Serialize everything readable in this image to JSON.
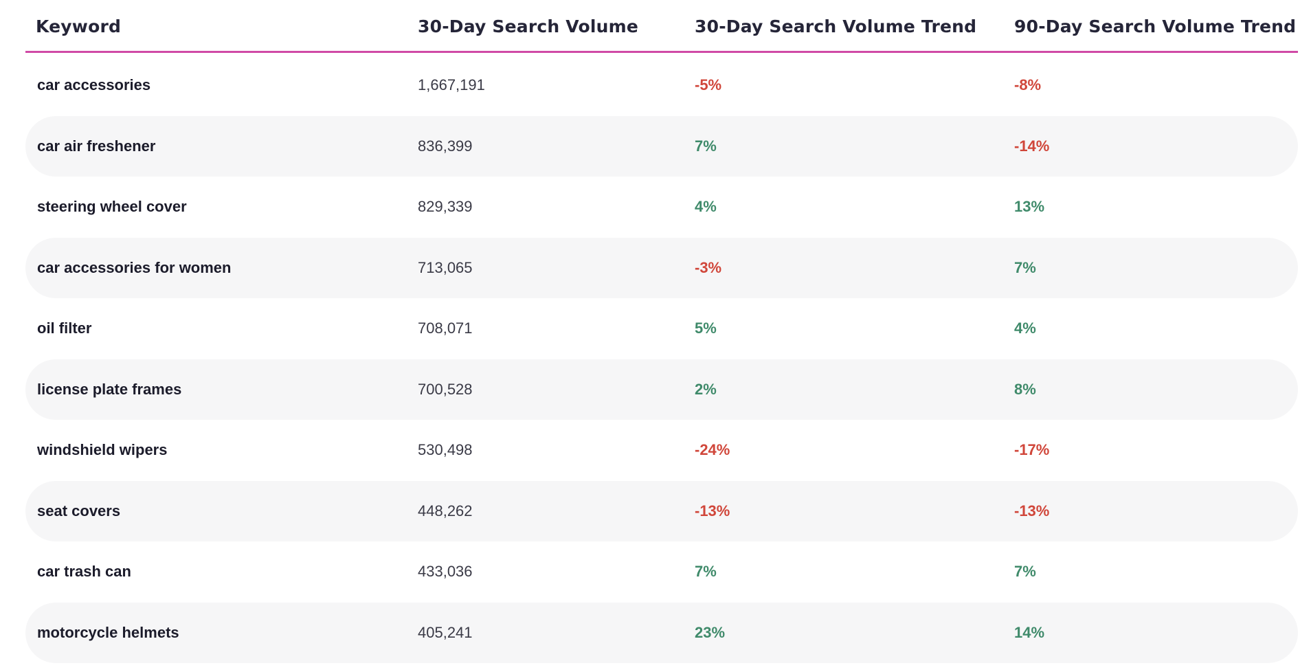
{
  "colors": {
    "header_rule": "#d04aa6",
    "negative": "#d0463a",
    "positive": "#3f8a6a",
    "alt_row": "#f6f6f7"
  },
  "headers": {
    "keyword": "Keyword",
    "volume": "30-Day Search Volume",
    "trend_30": "30-Day Search Volume Trend",
    "trend_90": "90-Day Search Volume Trend"
  },
  "rows": [
    {
      "keyword": "car accessories",
      "volume": "1,667,191",
      "trend_30": "-5%",
      "trend_90": "-8%"
    },
    {
      "keyword": "car air freshener",
      "volume": "836,399",
      "trend_30": "7%",
      "trend_90": "-14%"
    },
    {
      "keyword": "steering wheel cover",
      "volume": "829,339",
      "trend_30": "4%",
      "trend_90": "13%"
    },
    {
      "keyword": "car accessories for women",
      "volume": "713,065",
      "trend_30": "-3%",
      "trend_90": "7%"
    },
    {
      "keyword": "oil filter",
      "volume": "708,071",
      "trend_30": "5%",
      "trend_90": "4%"
    },
    {
      "keyword": "license plate frames",
      "volume": "700,528",
      "trend_30": "2%",
      "trend_90": "8%"
    },
    {
      "keyword": "windshield wipers",
      "volume": "530,498",
      "trend_30": "-24%",
      "trend_90": "-17%"
    },
    {
      "keyword": "seat covers",
      "volume": "448,262",
      "trend_30": "-13%",
      "trend_90": "-13%"
    },
    {
      "keyword": "car trash can",
      "volume": "433,036",
      "trend_30": "7%",
      "trend_90": "7%"
    },
    {
      "keyword": "motorcycle helmets",
      "volume": "405,241",
      "trend_30": "23%",
      "trend_90": "14%"
    }
  ]
}
